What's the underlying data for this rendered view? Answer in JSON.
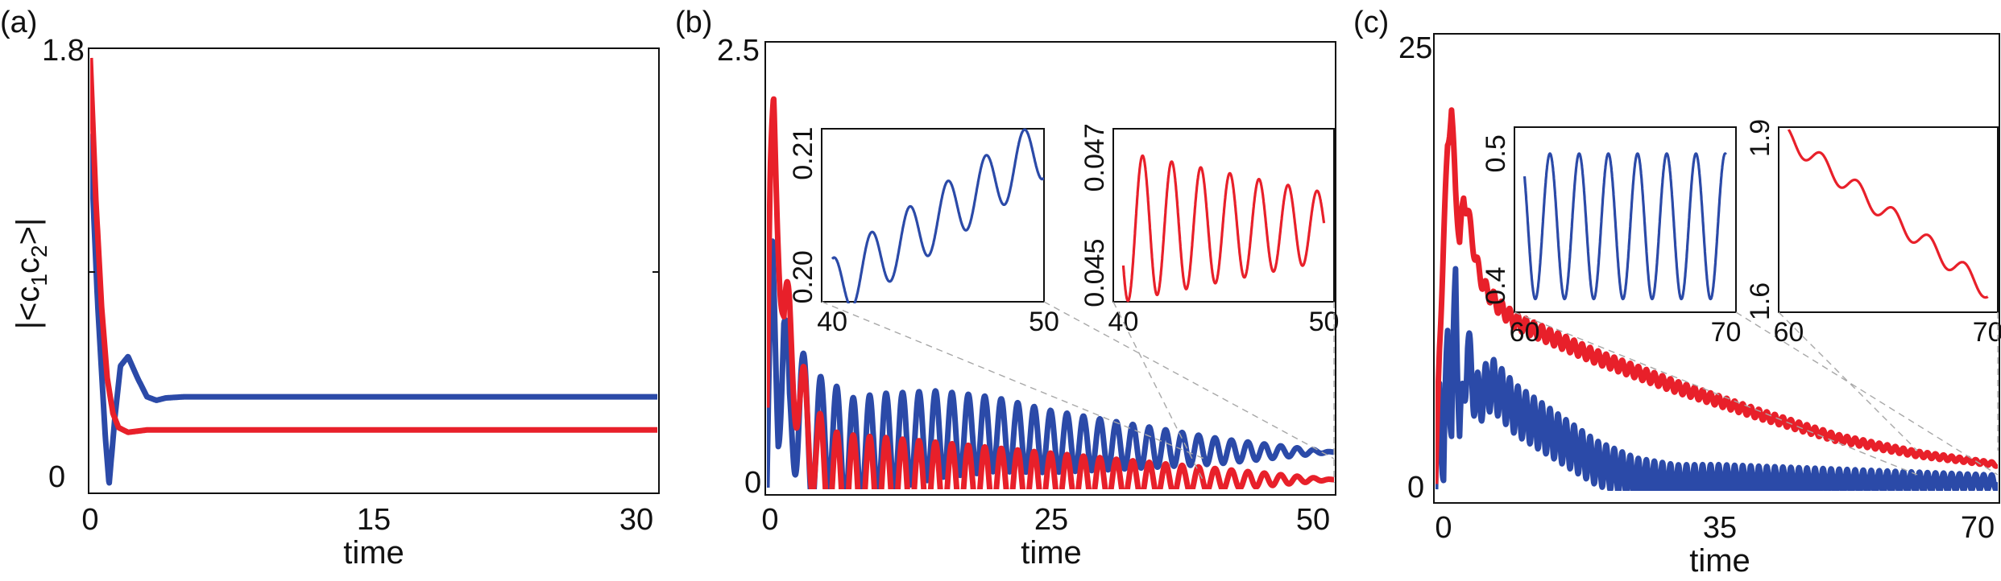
{
  "colors": {
    "blue": "#2b4aa8",
    "red": "#e8202a"
  },
  "panels": [
    {
      "label": "(a)",
      "xlabel": "time",
      "ylabel": "|<c1c2>|"
    },
    {
      "label": "(b)",
      "xlabel": "time"
    },
    {
      "label": "(c)",
      "xlabel": "time"
    }
  ],
  "chart_data": [
    {
      "type": "line",
      "panel": "(a)",
      "xlabel": "time",
      "ylabel": "|<c1c2>|",
      "xlim": [
        0,
        30
      ],
      "ylim": [
        0,
        1.8
      ],
      "xticks": [
        0,
        15,
        30
      ],
      "yticks": [
        0,
        1.8
      ],
      "series": [
        {
          "color": "#2b4aa8",
          "x": [
            0,
            0.4,
            0.8,
            1.0,
            1.3,
            1.6,
            2.0,
            2.5,
            3.0,
            3.5,
            4,
            5,
            6,
            8,
            10,
            15,
            20,
            25,
            30
          ],
          "y": [
            1.48,
            0.75,
            0.2,
            0.0,
            0.28,
            0.5,
            0.54,
            0.45,
            0.37,
            0.355,
            0.365,
            0.37,
            0.37,
            0.37,
            0.37,
            0.37,
            0.37,
            0.37,
            0.37
          ]
        },
        {
          "color": "#e8202a",
          "x": [
            0,
            0.3,
            0.6,
            0.9,
            1.2,
            1.5,
            2.0,
            2.5,
            3,
            4,
            5,
            10,
            15,
            20,
            25,
            30
          ],
          "y": [
            1.8,
            1.2,
            0.75,
            0.45,
            0.3,
            0.24,
            0.22,
            0.225,
            0.23,
            0.23,
            0.23,
            0.23,
            0.23,
            0.23,
            0.23,
            0.23
          ]
        }
      ]
    },
    {
      "type": "line",
      "panel": "(b)",
      "xlabel": "time",
      "xlim": [
        0,
        50
      ],
      "ylim": [
        0,
        2.5
      ],
      "xticks": [
        0,
        25,
        50
      ],
      "yticks": [
        0,
        2.5
      ],
      "series": [
        {
          "color": "#2b4aa8",
          "x": [
            0,
            0.5,
            1,
            1.5,
            2,
            3,
            4,
            5,
            7,
            10,
            15,
            20,
            25,
            30,
            40,
            50
          ],
          "y": [
            0.0,
            1.1,
            0.55,
            0.85,
            0.3,
            0.5,
            0.2,
            0.35,
            0.2,
            0.25,
            0.3,
            0.3,
            0.26,
            0.24,
            0.205,
            0.2
          ],
          "oscillation": {
            "amplitude_start": 0.35,
            "amplitude_end": 0.0,
            "period": 1.45
          }
        },
        {
          "color": "#e8202a",
          "x": [
            0,
            0.3,
            0.6,
            1,
            1.5,
            2,
            3,
            4,
            5,
            6,
            8,
            10,
            15,
            20,
            30,
            40,
            50
          ],
          "y": [
            0.45,
            1.5,
            2.05,
            1.6,
            0.9,
            0.85,
            0.45,
            0.25,
            0.1,
            0.05,
            0.04,
            0.045,
            0.045,
            0.045,
            0.045,
            0.045,
            0.045
          ],
          "oscillation": {
            "amplitude_start": 0.3,
            "amplitude_end": 0.0,
            "period": 1.45
          }
        }
      ],
      "insets": [
        {
          "color": "#2b4aa8",
          "xlim": [
            39.5,
            50
          ],
          "ylim": [
            0.198,
            0.212
          ],
          "xticks": [
            40,
            50
          ],
          "yticks": [
            0.2,
            0.21
          ],
          "ytick_labels": [
            "0.20",
            "0.21"
          ],
          "x": [
            40,
            50
          ],
          "y": [
            0.199,
            0.2105
          ],
          "oscillation": {
            "amplitude": 0.0025,
            "period": 1.8
          }
        },
        {
          "color": "#e8202a",
          "xlim": [
            39.5,
            50.5
          ],
          "ylim": [
            0.0445,
            0.0475
          ],
          "xticks": [
            40,
            50
          ],
          "yticks": [
            0.045,
            0.047
          ],
          "ytick_labels": [
            "0.045",
            "0.047"
          ],
          "x": [
            40,
            50
          ],
          "y": [
            0.0458,
            0.0458
          ],
          "oscillation": {
            "amplitude_start": 0.0013,
            "amplitude_end": 0.0006,
            "period": 1.45
          }
        }
      ]
    },
    {
      "type": "line",
      "panel": "(c)",
      "xlabel": "time",
      "xlim": [
        0,
        70
      ],
      "ylim": [
        0,
        25
      ],
      "xticks": [
        0,
        35,
        70
      ],
      "yticks": [
        0,
        25
      ],
      "series": [
        {
          "color": "#2b4aa8",
          "x": [
            0,
            0.5,
            1,
            1.5,
            2,
            2.5,
            3,
            4,
            5,
            7,
            10,
            15,
            20,
            25,
            30,
            35,
            50,
            70
          ],
          "y": [
            0.0,
            6,
            0.5,
            9,
            3,
            12.5,
            3,
            8,
            5,
            6,
            4.5,
            3,
            1.5,
            0.6,
            0.3,
            0.4,
            0.4,
            0.4
          ],
          "oscillation": {
            "amplitude_start": 1.6,
            "amplitude_end": 0.4,
            "period": 1.0
          }
        },
        {
          "color": "#e8202a",
          "x": [
            0,
            0.5,
            1,
            1.5,
            2,
            2.5,
            3,
            3.5,
            4,
            5,
            6,
            8,
            10,
            15,
            20,
            30,
            40,
            50,
            60,
            70
          ],
          "y": [
            0.3,
            8,
            14,
            19.5,
            21.5,
            17,
            14,
            16.5,
            15.8,
            13,
            11.5,
            10.3,
            9.5,
            8.5,
            7.5,
            5.8,
            4.3,
            2.9,
            2.0,
            1.4
          ],
          "oscillation": {
            "amplitude_start": 0.5,
            "amplitude_end": 0.1,
            "period": 1.0
          }
        }
      ],
      "insets": [
        {
          "color": "#2b4aa8",
          "xlim": [
            59.5,
            70.5
          ],
          "ylim": [
            0.38,
            0.52
          ],
          "xticks": [
            60,
            70
          ],
          "yticks": [
            0.4,
            0.5
          ],
          "ytick_labels": [
            "0.4",
            "0.5"
          ],
          "x": [
            60,
            70
          ],
          "y": [
            0.445,
            0.445
          ],
          "oscillation": {
            "amplitude": 0.055,
            "period": 1.45
          }
        },
        {
          "color": "#e8202a",
          "xlim": [
            59.5,
            70.5
          ],
          "ylim": [
            1.58,
            1.92
          ],
          "xticks": [
            60,
            70
          ],
          "yticks": [
            1.6,
            1.9
          ],
          "ytick_labels": [
            "1.6",
            "1.9"
          ],
          "x": [
            60,
            70
          ],
          "y": [
            1.9,
            1.62
          ],
          "oscillation": {
            "amplitude": 0.018,
            "period": 1.8
          }
        }
      ]
    }
  ]
}
